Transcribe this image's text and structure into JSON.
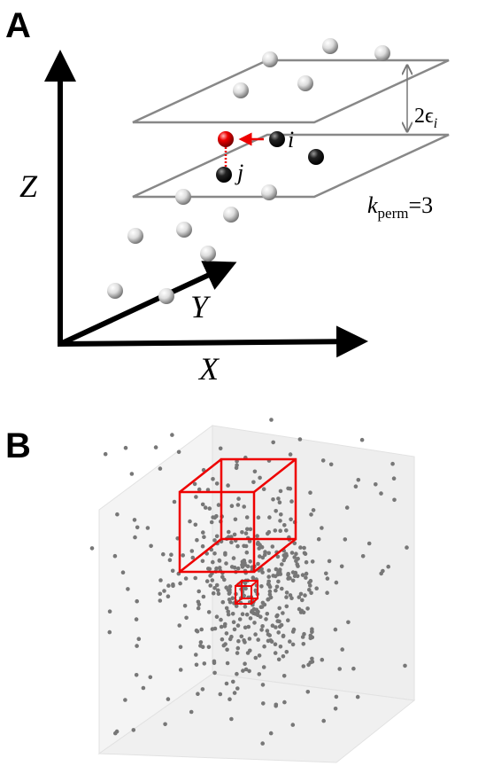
{
  "panel_a": {
    "label": "A",
    "axis_z": "Z",
    "axis_y": "Y",
    "axis_x": "X",
    "point_i": "i",
    "point_j": "j",
    "epsilon_main": "2ϵ",
    "epsilon_sub": "i",
    "k_main": "k",
    "k_sub": "perm",
    "k_rest": "=3"
  },
  "panel_b": {
    "label": "B"
  }
}
